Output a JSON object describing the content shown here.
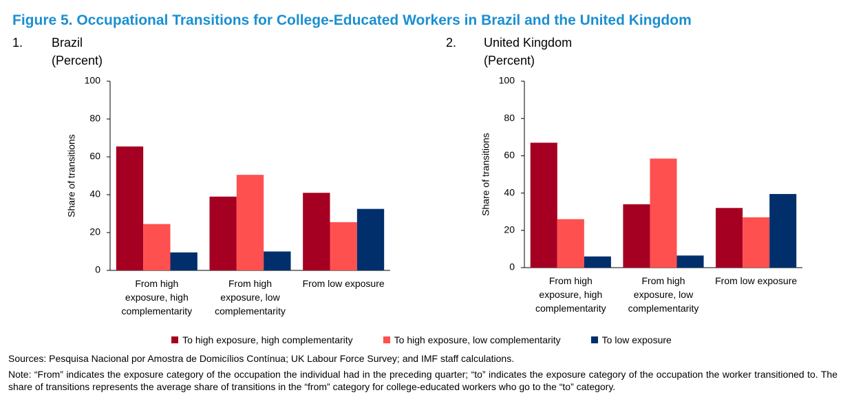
{
  "title": "Figure 5. Occupational Transitions for College-Educated Workers in Brazil and the United Kingdom",
  "sources": "Sources: Pesquisa Nacional por Amostra de Domicílios Contínua; UK Labour Force Survey; and IMF staff calculations.",
  "note": "Note: “From” indicates the exposure category of the occupation the individual had in the preceding quarter; “to” indicates the exposure category of the occupation the worker transitioned to. The share of transitions represents the average share of transitions in the “from” category for college-educated workers who go to the “to” category.",
  "chart_data": [
    {
      "type": "bar",
      "number": "1.",
      "title": "Brazil",
      "subtitle": "(Percent)",
      "y_label": "Share of transitions",
      "categories": [
        "From high exposure, high complementarity",
        "From high exposure, low complementarity",
        "From low exposure"
      ],
      "series": [
        {
          "name": "To high exposure, high complementarity",
          "color": "#a50021",
          "values": [
            65.5,
            39,
            41
          ]
        },
        {
          "name": "To high exposure, low complementarity",
          "color": "#ff5050",
          "values": [
            24.5,
            50.5,
            25.5
          ]
        },
        {
          "name": "To low exposure",
          "color": "#002f6c",
          "values": [
            9.5,
            10,
            32.5
          ]
        }
      ],
      "ylim": [
        0,
        100
      ],
      "yticks": [
        0,
        20,
        40,
        60,
        80,
        100
      ],
      "grid": false
    },
    {
      "type": "bar",
      "number": "2.",
      "title": "United Kingdom",
      "subtitle": "(Percent)",
      "y_label": "Share of transitions",
      "categories": [
        "From high exposure, high complementarity",
        "From high exposure, low complementarity",
        "From low exposure"
      ],
      "series": [
        {
          "color": "#a50021",
          "values": [
            67,
            34,
            32
          ]
        },
        {
          "color": "#ff5050",
          "values": [
            26,
            58.5,
            27
          ]
        },
        {
          "color": "#002f6c",
          "values": [
            6,
            6.5,
            39.5
          ]
        }
      ],
      "ylim": [
        0,
        100
      ],
      "yticks": [
        0,
        20,
        40,
        60,
        80,
        100
      ],
      "grid": false
    }
  ]
}
